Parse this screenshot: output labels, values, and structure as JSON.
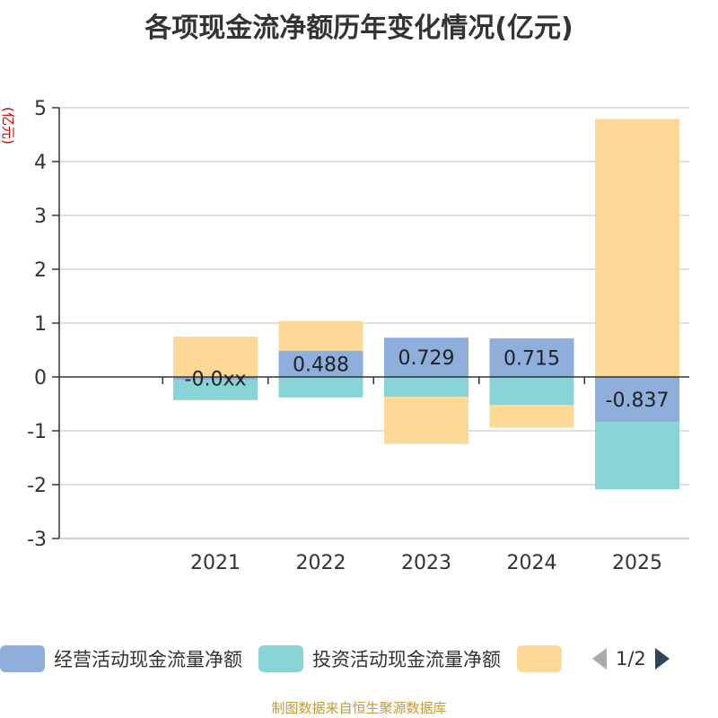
{
  "chart_data": {
    "type": "bar",
    "stacked": true,
    "title": "各项现金流净额历年变化情况(亿元)",
    "ylabel": "(亿元)",
    "ylim": [
      -3,
      5
    ],
    "yticks": [
      -3,
      -2,
      -1,
      0,
      1,
      2,
      3,
      4,
      5
    ],
    "categories": [
      "2021",
      "2022",
      "2023",
      "2024",
      "2025"
    ],
    "series": [
      {
        "name": "经营活动现金流量净额",
        "color": "#8eaedb",
        "values": [
          -0.05,
          0.488,
          0.729,
          0.715,
          -0.837
        ]
      },
      {
        "name": "投资活动现金流量净额",
        "color": "#88d4d6",
        "values": [
          -0.38,
          -0.38,
          -0.37,
          -0.52,
          -1.25
        ]
      },
      {
        "name": "",
        "color": "#fdd897",
        "values": [
          0.75,
          0.55,
          -0.87,
          -0.42,
          4.79
        ]
      }
    ],
    "data_labels": [
      "-0.0xx",
      "0.488",
      "0.729",
      "0.715",
      "-0.837"
    ],
    "legend": {
      "position": "bottom",
      "page": "1/2"
    }
  },
  "footer": {
    "source": "制图数据来自恒生聚源数据库"
  }
}
